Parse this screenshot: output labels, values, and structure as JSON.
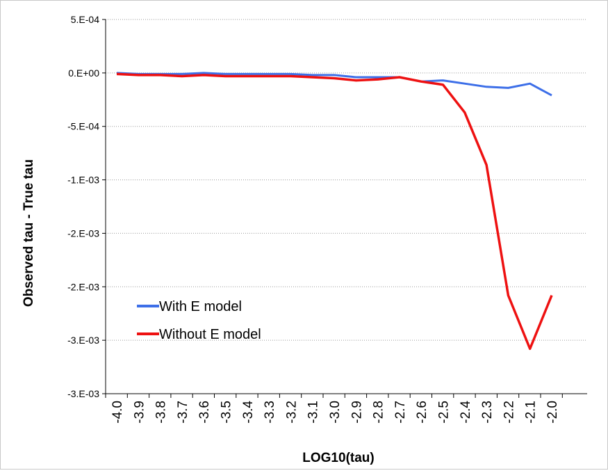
{
  "chart_data": {
    "type": "line",
    "title": "",
    "xlabel": "LOG10(tau)",
    "ylabel": "Observed  tau - True tau",
    "x_categories": [
      "-4.0",
      "-3.9",
      "-3.8",
      "-3.7",
      "-3.6",
      "-3.5",
      "-3.4",
      "-3.3",
      "-3.2",
      "-3.1",
      "-3.0",
      "-2.9",
      "-2.8",
      "-2.7",
      "-2.6",
      "-2.5",
      "-2.4",
      "-2.3",
      "-2.2",
      "-2.1",
      "-2.0"
    ],
    "y_ticks": [
      {
        "value": 0.0005,
        "label": "5.E-04"
      },
      {
        "value": 0.0,
        "label": "0.E+00"
      },
      {
        "value": -0.0005,
        "label": "-5.E-04"
      },
      {
        "value": -0.001,
        "label": "-1.E-03"
      },
      {
        "value": -0.0015,
        "label": "-2.E-03"
      },
      {
        "value": -0.002,
        "label": "-2.E-03"
      },
      {
        "value": -0.0025,
        "label": "-3.E-03"
      },
      {
        "value": -0.003,
        "label": "-3.E-03"
      }
    ],
    "ylim": [
      -0.003,
      0.0005
    ],
    "grid": "horizontal dotted",
    "legend_position": "lower-left",
    "series": [
      {
        "name": "With E model",
        "color": "#3d6fe8",
        "values": [
          0.0,
          -1e-05,
          -1e-05,
          -1e-05,
          0.0,
          -1e-05,
          -1e-05,
          -1e-05,
          -1e-05,
          -2e-05,
          -2e-05,
          -4e-05,
          -4e-05,
          -4e-05,
          -8e-05,
          -7e-05,
          -0.0001,
          -0.00013,
          -0.00014,
          -0.0001,
          -0.00021
        ]
      },
      {
        "name": "Without E model",
        "color": "#ee1111",
        "values": [
          -1e-05,
          -2e-05,
          -2e-05,
          -3e-05,
          -2e-05,
          -3e-05,
          -3e-05,
          -3e-05,
          -3e-05,
          -4e-05,
          -5e-05,
          -7e-05,
          -6e-05,
          -4e-05,
          -8e-05,
          -0.00011,
          -0.00037,
          -0.00086,
          -0.00208,
          -0.00258,
          -0.00208
        ]
      }
    ]
  }
}
